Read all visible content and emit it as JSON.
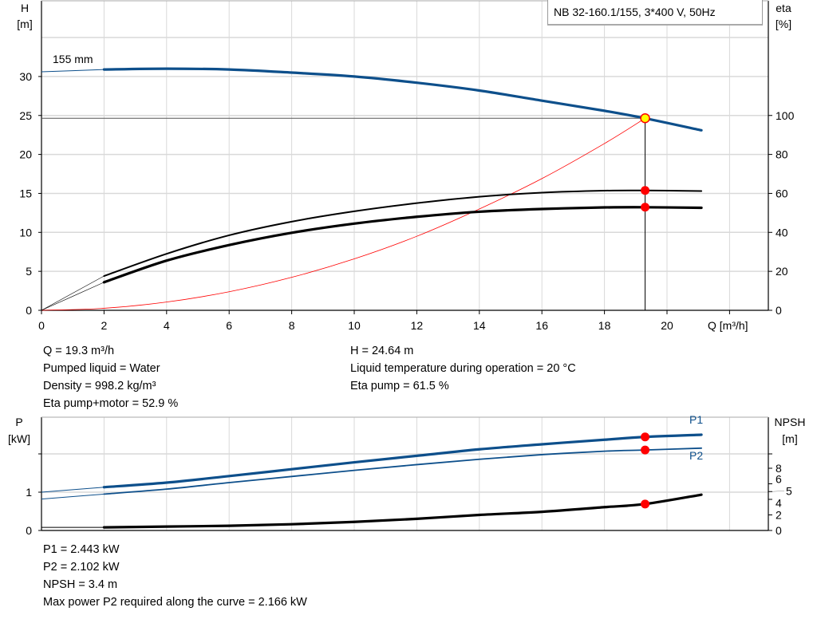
{
  "chart_data": [
    {
      "type": "line",
      "title": "NB 32-160.1/155, 3*400 V, 50Hz",
      "xlabel": "Q [m³/h]",
      "ylabel": "H\n[m]",
      "ylabel_right": "eta\n[%]",
      "xlim": [
        0,
        23
      ],
      "ylim": [
        0,
        40
      ],
      "ylim_right": [
        0,
        160
      ],
      "x_ticks": [
        0,
        2,
        4,
        6,
        8,
        10,
        12,
        14,
        16,
        18,
        20
      ],
      "y_ticks": [
        0,
        5,
        10,
        15,
        20,
        25,
        30
      ],
      "y_ticks_right": [
        0,
        20,
        40,
        60,
        80,
        100
      ],
      "grid": true,
      "curve_label": "155 mm",
      "series": [
        {
          "id": "head",
          "axis": "left",
          "color": "#0d4f8b",
          "x": [
            0,
            2,
            4,
            6,
            8,
            10,
            12,
            14,
            16,
            18,
            19.3,
            21.1
          ],
          "y": [
            30.6,
            30.9,
            31.0,
            30.9,
            30.5,
            30.0,
            29.2,
            28.2,
            26.9,
            25.6,
            24.64,
            23.1
          ]
        },
        {
          "id": "eta-pump",
          "axis": "right",
          "color": "#000000",
          "x": [
            0,
            2,
            4,
            6,
            8,
            10,
            12,
            14,
            16,
            18,
            19.3,
            21.1
          ],
          "y": [
            0,
            17.6,
            29,
            38.5,
            45.5,
            50.8,
            55,
            58.3,
            60.4,
            61.4,
            61.5,
            61.2
          ]
        },
        {
          "id": "eta-pump-motor",
          "axis": "right",
          "color": "#000000",
          "x": [
            0,
            2,
            4,
            6,
            8,
            10,
            12,
            14,
            16,
            18,
            19.3,
            21.1
          ],
          "y": [
            0,
            14.4,
            25.5,
            33.5,
            39.8,
            44.5,
            48,
            50.6,
            52,
            52.8,
            52.9,
            52.6
          ]
        },
        {
          "id": "system-curve",
          "axis": "left",
          "color": "#ff0000",
          "x": [
            0,
            2,
            4,
            6,
            8,
            10,
            12,
            14,
            16,
            18,
            19.3
          ],
          "y": [
            0,
            0.26,
            1.06,
            2.38,
            4.23,
            6.6,
            9.5,
            13.0,
            16.9,
            21.4,
            24.64
          ]
        }
      ],
      "operating_point": {
        "Q": 19.3,
        "H": 24.64,
        "eta_pump": 61.5,
        "eta_pump_motor": 52.9
      }
    },
    {
      "type": "line",
      "xlim": [
        0,
        23
      ],
      "ylabel": "P\n[kW]",
      "ylabel_right": "NPSH\n[m]",
      "ylim": [
        0,
        2.9
      ],
      "ylim_right": [
        0,
        14.5
      ],
      "y_ticks": [
        0,
        1,
        2
      ],
      "y_tick_labels": [
        "0",
        "1",
        ""
      ],
      "y_ticks_right": [
        0,
        2,
        4,
        5,
        6,
        8
      ],
      "grid": true,
      "series": [
        {
          "id": "p1",
          "name": "P1",
          "axis": "left",
          "color": "#0d4f8b",
          "x": [
            0,
            2,
            4,
            6,
            8,
            10,
            12,
            14,
            16,
            18,
            19.3,
            21.1
          ],
          "y": [
            1.0,
            1.13,
            1.25,
            1.42,
            1.6,
            1.78,
            1.95,
            2.12,
            2.25,
            2.37,
            2.443,
            2.5
          ]
        },
        {
          "id": "p2",
          "name": "P2",
          "axis": "left",
          "color": "#0d4f8b",
          "x": [
            0,
            2,
            4,
            6,
            8,
            10,
            12,
            14,
            16,
            18,
            19.3,
            21.1
          ],
          "y": [
            0.82,
            0.95,
            1.08,
            1.25,
            1.41,
            1.57,
            1.72,
            1.86,
            1.98,
            2.07,
            2.102,
            2.15
          ]
        },
        {
          "id": "npsh",
          "axis": "right",
          "color": "#000000",
          "x": [
            0,
            2,
            4,
            6,
            8,
            10,
            12,
            14,
            16,
            18,
            19.3,
            21.1
          ],
          "y": [
            0.4,
            0.4,
            0.5,
            0.6,
            0.8,
            1.1,
            1.5,
            2.0,
            2.4,
            3.0,
            3.4,
            4.6
          ]
        }
      ],
      "operating_point": {
        "Q": 19.3,
        "P1": 2.443,
        "P2": 2.102,
        "NPSH": 3.4
      }
    }
  ],
  "info_top_left": [
    "Q = 19.3 m³/h",
    "Pumped liquid = Water",
    "Density = 998.2 kg/m³",
    "Eta pump+motor = 52.9 %"
  ],
  "info_top_right": [
    "H = 24.64 m",
    "Liquid temperature during operation = 20 °C",
    "Eta pump = 61.5 %"
  ],
  "info_bottom": [
    "P1 = 2.443 kW",
    "P2 = 2.102 kW",
    "NPSH = 3.4 m",
    "Max power P2 required along the curve = 2.166 kW"
  ],
  "colors": {
    "curve_blue": "#0d4f8b",
    "marker_red": "#ff0000",
    "marker_yellow": "#ffff00",
    "grid": "#d9d9d9"
  }
}
